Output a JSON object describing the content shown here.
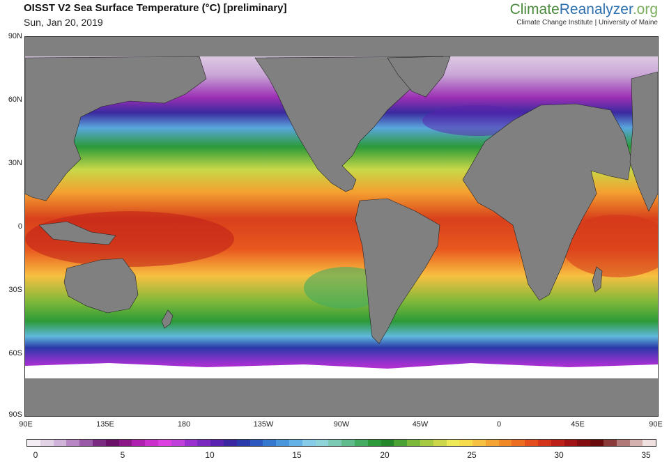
{
  "header": {
    "title": "OISST V2 Sea Surface Temperature (°C) [preliminary]",
    "date": "Sun, Jan 20, 2019"
  },
  "brand": {
    "name_part1": "Climate",
    "name_part2": "Reanalyzer",
    "name_part3": ".org",
    "subtitle": "Climate Change Institute | University of Maine"
  },
  "map": {
    "projection": "equirectangular",
    "lon_range": [
      90,
      450
    ],
    "lat_range": [
      -90,
      90
    ],
    "land_color": "#808080",
    "ice_color": "#ffffff",
    "lat_labels": [
      "90N",
      "60N",
      "30N",
      "0",
      "30S",
      "60S",
      "90S"
    ],
    "lon_labels": [
      "90E",
      "135E",
      "180",
      "135W",
      "90W",
      "45W",
      "0",
      "45E",
      "90E"
    ]
  },
  "colorbar": {
    "min": 0,
    "max": 35,
    "tick_labels": [
      "0",
      "5",
      "10",
      "15",
      "20",
      "25",
      "30",
      "35"
    ],
    "colors": [
      "#f4eef4",
      "#e2d2e6",
      "#cfb3d8",
      "#b986c4",
      "#9a5aa8",
      "#7a2a80",
      "#6a1068",
      "#8c1888",
      "#b020b0",
      "#cc30cc",
      "#dc40e0",
      "#c040dc",
      "#9a30d0",
      "#7a28c0",
      "#5a22b0",
      "#3a26a0",
      "#2a3aa8",
      "#2c58c0",
      "#3478d0",
      "#4a96dc",
      "#64b2e6",
      "#86cce8",
      "#8ed4d8",
      "#7acab4",
      "#60bc8c",
      "#44ac60",
      "#2c9a38",
      "#24882a",
      "#4aa232",
      "#7cb83a",
      "#a6ca42",
      "#ccd84a",
      "#ecea56",
      "#f6dc4a",
      "#f6c040",
      "#f4a432",
      "#f08826",
      "#ec6c20",
      "#e44e1c",
      "#d4341a",
      "#bc1e18",
      "#a01214",
      "#820c10",
      "#6a0a0c",
      "#8a3a38",
      "#b07876",
      "#d4b0ae",
      "#f0e0e0"
    ]
  }
}
